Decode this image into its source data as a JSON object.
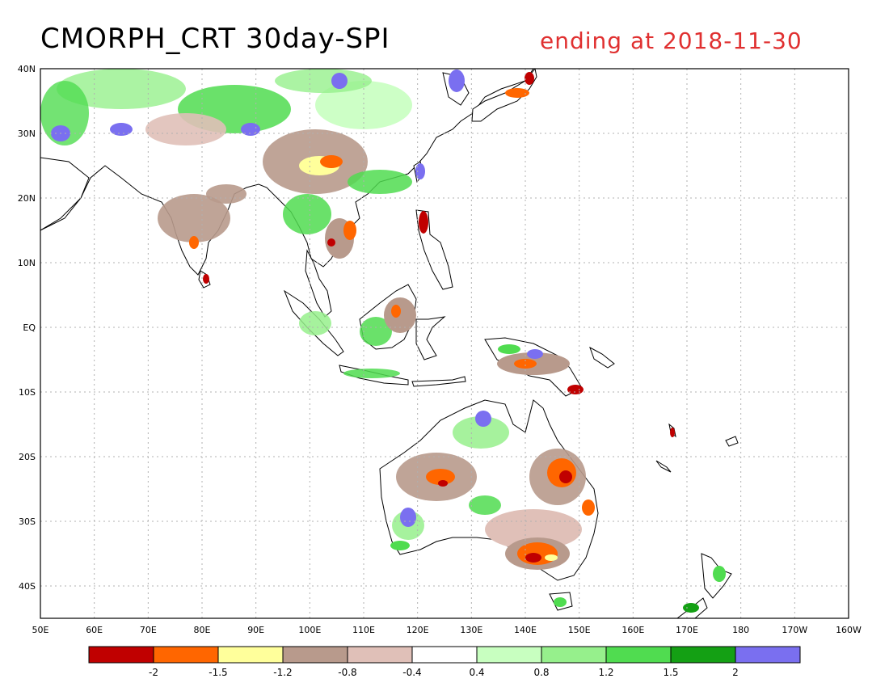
{
  "title": {
    "left": "CMORPH_CRT 30day-SPI",
    "right": "ending at 2018-11-30"
  },
  "axes": {
    "x_ticks": [
      "50E",
      "60E",
      "70E",
      "80E",
      "90E",
      "100E",
      "110E",
      "120E",
      "130E",
      "140E",
      "150E",
      "160E",
      "170E",
      "180",
      "170W",
      "160W"
    ],
    "y_ticks": [
      "40N",
      "30N",
      "20N",
      "10N",
      "EQ",
      "10S",
      "20S",
      "30S",
      "40S"
    ],
    "lon_range": [
      50,
      200
    ],
    "lat_range": [
      -45,
      40
    ]
  },
  "legend": {
    "colors": [
      "#c00000",
      "#ff6600",
      "#ffff9b",
      "#b89a8c",
      "#e0c0b8",
      "#ffffff",
      "#c8ffc0",
      "#96f08c",
      "#50dc50",
      "#14a014",
      "#7a6ff0"
    ],
    "labels": [
      "-2",
      "-1.5",
      "-1.2",
      "-0.8",
      "-0.4",
      "0.4",
      "0.8",
      "1.2",
      "1.5",
      "2"
    ]
  },
  "colors": {
    "title_right": "#e03030",
    "ocean": "#ffffff",
    "grid": "#b0b0b0"
  }
}
